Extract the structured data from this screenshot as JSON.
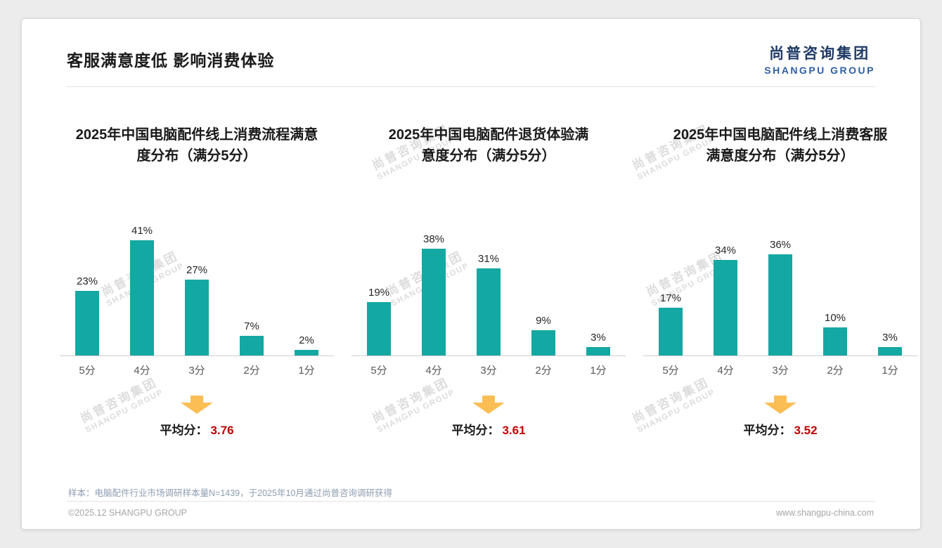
{
  "page": {
    "title": "客服满意度低 影响消费体验",
    "logo": {
      "cn": "尚普咨询集团",
      "en": "SHANGPU GROUP"
    },
    "watermark": {
      "cn": "尚普咨询集团",
      "en": "SHANGPU GROUP"
    },
    "footnote": "样本：电脑配件行业市场调研样本量N=1439，于2025年10月通过尚普咨询调研获得",
    "footer_left": "©2025.12 SHANGPU GROUP",
    "footer_right": "www.shangpu-china.com"
  },
  "colors": {
    "bar": "#14a8a2",
    "arrow": "#fbbe55",
    "average": "#c00000",
    "logo_cn": "#1f3a66",
    "logo_en": "#2e5fa3"
  },
  "chart_data": [
    {
      "type": "bar",
      "title": "2025年中国电脑配件线上消费流程满意度分布（满分5分）",
      "title_lines": [
        "2025年中国电脑配件线上消费流程满意",
        "度分布（满分5分）"
      ],
      "categories": [
        "5分",
        "4分",
        "3分",
        "2分",
        "1分"
      ],
      "values": [
        23,
        41,
        27,
        7,
        2
      ],
      "value_labels": [
        "23%",
        "41%",
        "27%",
        "7%",
        "2%"
      ],
      "ylim": [
        0,
        45
      ],
      "grid": false,
      "legend": false,
      "average_label": "平均分：",
      "average": "3.76"
    },
    {
      "type": "bar",
      "title": "2025年中国电脑配件退货体验满意度分布（满分5分）",
      "title_lines": [
        "2025年中国电脑配件退货体验满",
        "意度分布（满分5分）"
      ],
      "categories": [
        "5分",
        "4分",
        "3分",
        "2分",
        "1分"
      ],
      "values": [
        19,
        38,
        31,
        9,
        3
      ],
      "value_labels": [
        "19%",
        "38%",
        "31%",
        "9%",
        "3%"
      ],
      "ylim": [
        0,
        45
      ],
      "grid": false,
      "legend": false,
      "average_label": "平均分：",
      "average": "3.61"
    },
    {
      "type": "bar",
      "title": "2025年中国电脑配件线上消费客服满意度分布（满分5分）",
      "title_lines": [
        "2025年中国电脑配件线上消费客服",
        "满意度分布（满分5分）"
      ],
      "categories": [
        "5分",
        "4分",
        "3分",
        "2分",
        "1分"
      ],
      "values": [
        17,
        34,
        36,
        10,
        3
      ],
      "value_labels": [
        "17%",
        "34%",
        "36%",
        "10%",
        "3%"
      ],
      "ylim": [
        0,
        45
      ],
      "grid": false,
      "legend": false,
      "average_label": "平均分：",
      "average": "3.52"
    }
  ]
}
